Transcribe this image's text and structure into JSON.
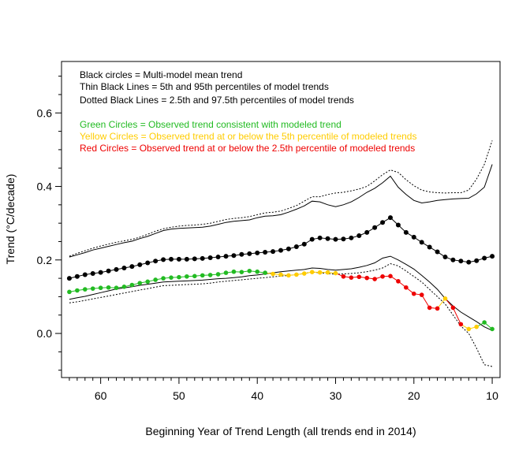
{
  "chart_data": {
    "type": "line",
    "xlabel": "Beginning Year of Trend Length (all trends end in 2014)",
    "ylabel": "Trend (°C/decade)",
    "xlim": [
      65,
      9
    ],
    "ylim": [
      -0.12,
      0.74
    ],
    "x_ticks": [
      60,
      50,
      40,
      30,
      20,
      10
    ],
    "y_ticks": [
      0.0,
      0.2,
      0.4,
      0.6
    ],
    "x_tick_labels": [
      "60",
      "50",
      "40",
      "30",
      "20",
      "10"
    ],
    "y_tick_labels": [
      "0.0",
      "0.2",
      "0.4",
      "0.6"
    ],
    "legend": [
      {
        "text": "Black circles = Multi-model mean trend",
        "color": "#000000"
      },
      {
        "text": "Thin Black Lines = 5th and 95th percentiles of model trends",
        "color": "#000000"
      },
      {
        "text": "Dotted Black Lines = 2.5th and 97.5th percentiles of model trends",
        "color": "#000000"
      },
      {
        "text": "Green Circles = Observed trend consistent with modeled trend",
        "color": "#22bb22"
      },
      {
        "text": "Yellow Circles = Observed trend at or below the 5th percentile of modeled trends",
        "color": "#ffcc00"
      },
      {
        "text": "Red Circles = Observed trend at or below the 2.5th percentile of modeled trends",
        "color": "#ee0000"
      }
    ],
    "colors": {
      "green": "#22bb22",
      "yellow": "#ffcc00",
      "red": "#ee0000",
      "black": "#000000"
    },
    "x": [
      64,
      63,
      62,
      61,
      60,
      59,
      58,
      57,
      56,
      55,
      54,
      53,
      52,
      51,
      50,
      49,
      48,
      47,
      46,
      45,
      44,
      43,
      42,
      41,
      40,
      39,
      38,
      37,
      36,
      35,
      34,
      33,
      32,
      31,
      30,
      29,
      28,
      27,
      26,
      25,
      24,
      23,
      22,
      21,
      20,
      19,
      18,
      17,
      16,
      15,
      14,
      13,
      12,
      11,
      10
    ],
    "series": [
      {
        "name": "Multi-model mean",
        "style": "circles",
        "color": "#000000",
        "values": [
          0.15,
          0.155,
          0.16,
          0.163,
          0.166,
          0.17,
          0.174,
          0.178,
          0.182,
          0.187,
          0.192,
          0.197,
          0.201,
          0.202,
          0.202,
          0.202,
          0.203,
          0.204,
          0.206,
          0.208,
          0.21,
          0.212,
          0.215,
          0.217,
          0.219,
          0.221,
          0.223,
          0.226,
          0.23,
          0.236,
          0.243,
          0.256,
          0.26,
          0.258,
          0.256,
          0.257,
          0.26,
          0.266,
          0.275,
          0.288,
          0.302,
          0.315,
          0.295,
          0.275,
          0.262,
          0.248,
          0.235,
          0.222,
          0.208,
          0.2,
          0.197,
          0.194,
          0.198,
          0.205,
          0.21
        ]
      },
      {
        "name": "Observed",
        "style": "circles",
        "values": [
          0.113,
          0.117,
          0.12,
          0.122,
          0.124,
          0.125,
          0.124,
          0.127,
          0.132,
          0.137,
          0.141,
          0.146,
          0.15,
          0.152,
          0.153,
          0.155,
          0.156,
          0.158,
          0.159,
          0.161,
          0.165,
          0.168,
          0.167,
          0.17,
          0.168,
          0.165,
          0.162,
          0.16,
          0.158,
          0.16,
          0.163,
          0.167,
          0.166,
          0.166,
          0.164,
          0.155,
          0.152,
          0.154,
          0.151,
          0.148,
          0.155,
          0.156,
          0.142,
          0.125,
          0.108,
          0.105,
          0.07,
          0.068,
          0.095,
          0.07,
          0.025,
          0.012,
          0.018,
          0.03,
          0.012
        ],
        "categories": [
          "green",
          "green",
          "green",
          "green",
          "green",
          "green",
          "green",
          "green",
          "green",
          "green",
          "green",
          "green",
          "green",
          "green",
          "green",
          "green",
          "green",
          "green",
          "green",
          "green",
          "green",
          "green",
          "green",
          "green",
          "green",
          "green",
          "yellow",
          "yellow",
          "yellow",
          "yellow",
          "yellow",
          "yellow",
          "yellow",
          "yellow",
          "yellow",
          "red",
          "red",
          "red",
          "red",
          "red",
          "red",
          "red",
          "red",
          "red",
          "red",
          "red",
          "red",
          "red",
          "yellow",
          "red",
          "red",
          "yellow",
          "yellow",
          "green",
          "green"
        ]
      },
      {
        "name": "95th percentile",
        "style": "solid",
        "color": "#000000",
        "values": [
          0.208,
          0.214,
          0.22,
          0.227,
          0.232,
          0.237,
          0.242,
          0.247,
          0.251,
          0.258,
          0.264,
          0.272,
          0.28,
          0.284,
          0.286,
          0.287,
          0.288,
          0.289,
          0.292,
          0.297,
          0.302,
          0.305,
          0.307,
          0.309,
          0.315,
          0.319,
          0.32,
          0.323,
          0.33,
          0.338,
          0.347,
          0.36,
          0.358,
          0.35,
          0.345,
          0.35,
          0.358,
          0.37,
          0.384,
          0.395,
          0.41,
          0.428,
          0.398,
          0.378,
          0.362,
          0.355,
          0.358,
          0.362,
          0.364,
          0.366,
          0.367,
          0.368,
          0.38,
          0.398,
          0.46
        ]
      },
      {
        "name": "5th percentile",
        "style": "solid",
        "color": "#000000",
        "values": [
          0.093,
          0.097,
          0.101,
          0.106,
          0.111,
          0.116,
          0.121,
          0.124,
          0.127,
          0.131,
          0.134,
          0.137,
          0.14,
          0.141,
          0.142,
          0.143,
          0.144,
          0.145,
          0.147,
          0.149,
          0.15,
          0.152,
          0.154,
          0.157,
          0.159,
          0.162,
          0.165,
          0.168,
          0.17,
          0.172,
          0.174,
          0.178,
          0.177,
          0.174,
          0.172,
          0.174,
          0.176,
          0.18,
          0.185,
          0.192,
          0.205,
          0.21,
          0.2,
          0.188,
          0.175,
          0.158,
          0.14,
          0.12,
          0.095,
          0.075,
          0.058,
          0.045,
          0.032,
          0.018,
          0.008
        ]
      },
      {
        "name": "97.5th percentile",
        "style": "dotted",
        "color": "#000000",
        "values": [
          0.21,
          0.218,
          0.225,
          0.232,
          0.238,
          0.243,
          0.248,
          0.252,
          0.256,
          0.262,
          0.27,
          0.278,
          0.285,
          0.289,
          0.292,
          0.294,
          0.295,
          0.297,
          0.3,
          0.305,
          0.31,
          0.313,
          0.315,
          0.318,
          0.323,
          0.328,
          0.33,
          0.333,
          0.34,
          0.348,
          0.36,
          0.372,
          0.372,
          0.378,
          0.382,
          0.384,
          0.388,
          0.393,
          0.4,
          0.415,
          0.432,
          0.445,
          0.438,
          0.418,
          0.402,
          0.39,
          0.385,
          0.383,
          0.382,
          0.383,
          0.383,
          0.39,
          0.42,
          0.46,
          0.525
        ]
      },
      {
        "name": "2.5th percentile",
        "style": "dotted",
        "color": "#000000",
        "values": [
          0.083,
          0.086,
          0.09,
          0.094,
          0.098,
          0.102,
          0.106,
          0.11,
          0.114,
          0.118,
          0.122,
          0.126,
          0.13,
          0.131,
          0.132,
          0.133,
          0.134,
          0.135,
          0.137,
          0.14,
          0.142,
          0.144,
          0.146,
          0.148,
          0.15,
          0.152,
          0.154,
          0.156,
          0.158,
          0.16,
          0.163,
          0.167,
          0.165,
          0.163,
          0.161,
          0.162,
          0.163,
          0.165,
          0.168,
          0.172,
          0.178,
          0.19,
          0.184,
          0.17,
          0.155,
          0.14,
          0.12,
          0.1,
          0.08,
          0.05,
          0.02,
          0.0,
          -0.04,
          -0.085,
          -0.09
        ]
      }
    ]
  }
}
